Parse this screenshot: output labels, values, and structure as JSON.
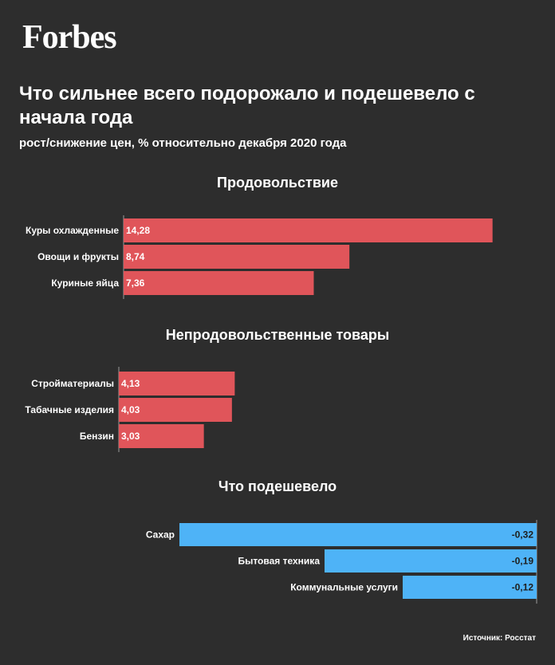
{
  "brand": "Forbes",
  "title": "Что сильнее всего подорожало и подешевело с начала года",
  "subtitle": "рост/снижение цен, % относительно декабря 2020 года",
  "source": "Источник: Росстат",
  "colors": {
    "background": "#2d2d2d",
    "increase": "#e0555a",
    "decrease": "#4eb3f7",
    "text": "#ffffff"
  },
  "chart_data": [
    {
      "type": "bar",
      "orientation": "horizontal",
      "title": "Продовольствие",
      "categories": [
        "Куры охлажденные",
        "Овощи и фрукты",
        "Куриные яйца"
      ],
      "values": [
        14.28,
        8.74,
        7.36
      ],
      "value_labels": [
        "14,28",
        "8,74",
        "7,36"
      ],
      "color": "#e0555a"
    },
    {
      "type": "bar",
      "orientation": "horizontal",
      "title": "Непродовольственные товары",
      "categories": [
        "Стройматериалы",
        "Табачные изделия",
        "Бензин"
      ],
      "values": [
        4.13,
        4.03,
        3.03
      ],
      "value_labels": [
        "4,13",
        "4,03",
        "3,03"
      ],
      "color": "#e0555a"
    },
    {
      "type": "bar",
      "orientation": "horizontal",
      "title": "Что подешевело",
      "categories": [
        "Сахар",
        "Бытовая техника",
        "Коммунальные услуги"
      ],
      "values": [
        -0.32,
        -0.19,
        -0.12
      ],
      "value_labels": [
        "-0,32",
        "-0,19",
        "-0,12"
      ],
      "color": "#4eb3f7"
    }
  ]
}
